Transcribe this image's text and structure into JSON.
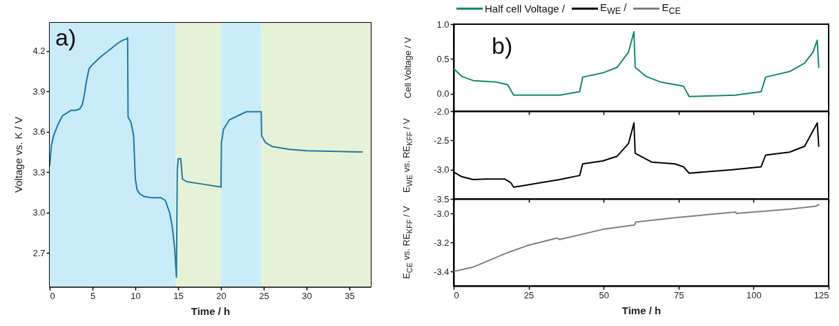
{
  "chart_data": [
    {
      "type": "line",
      "xlabel": "Time / h",
      "ylabel": "Voltage vs. K / V",
      "annotations": [
        "a)"
      ],
      "color": "#1f77a4",
      "x": [
        0,
        0.2,
        0.5,
        1,
        1.5,
        2,
        2.5,
        3,
        3.5,
        3.8,
        4,
        4.3,
        4.6,
        5,
        5.5,
        6,
        7,
        8,
        8.5,
        9,
        9.1,
        9.15,
        9.5,
        9.8,
        10,
        10.2,
        10.5,
        11,
        12,
        13,
        13.5,
        14,
        14.3,
        14.6,
        14.8,
        14.9,
        15,
        15.3,
        15.5,
        16,
        18,
        20,
        20.05,
        20.3,
        21,
        22,
        23,
        24.7,
        24.75,
        25.2,
        26,
        28,
        30,
        36.5
      ],
      "values": [
        3.35,
        3.5,
        3.58,
        3.66,
        3.72,
        3.74,
        3.76,
        3.76,
        3.77,
        3.8,
        3.86,
        3.98,
        4.07,
        4.1,
        4.13,
        4.16,
        4.21,
        4.26,
        4.28,
        4.29,
        4.3,
        3.71,
        3.67,
        3.57,
        3.25,
        3.17,
        3.14,
        3.12,
        3.11,
        3.11,
        3.09,
        3.0,
        2.9,
        2.73,
        2.52,
        3.31,
        3.4,
        3.4,
        3.25,
        3.23,
        3.21,
        3.19,
        3.52,
        3.62,
        3.69,
        3.72,
        3.75,
        3.75,
        3.57,
        3.52,
        3.49,
        3.47,
        3.46,
        3.45
      ],
      "bands": [
        {
          "axis": "x",
          "from": 0,
          "to": 14.7,
          "color": "#c9ecf8"
        },
        {
          "axis": "x",
          "from": 14.7,
          "to": 20,
          "color": "#e6f2d8"
        },
        {
          "axis": "x",
          "from": 20,
          "to": 24.7,
          "color": "#c9ecf8"
        },
        {
          "axis": "x",
          "from": 24.7,
          "to": 37.5,
          "color": "#e6f2d8"
        }
      ],
      "xlim": [
        0,
        37.5
      ],
      "xticks": [
        0,
        5,
        10,
        15,
        20,
        25,
        30,
        35
      ],
      "ylim": [
        2.45,
        4.41
      ],
      "yticks": [
        2.7,
        {
          "value": 3,
          "label": "3.0"
        },
        3.3,
        3.6,
        3.9,
        4.2
      ]
    },
    {
      "type": "line",
      "ylabel": "Cell Voltage / V",
      "annotations": [
        "b)"
      ],
      "legend": "top",
      "tick_labels": "y",
      "series": [
        {
          "name": "Half cell Voltage /",
          "color": "#138a66",
          "x": [
            0,
            2.7,
            6.5,
            14.2,
            18,
            20,
            35.3,
            42,
            43,
            49.7,
            54.5,
            58.3,
            60.1,
            60.5,
            64.1,
            68.9,
            76.6,
            78.5,
            93.9,
            102.5,
            104,
            112,
            117,
            119.8,
            121.2,
            121.7
          ],
          "values": [
            0.36,
            0.25,
            0.19,
            0.17,
            0.13,
            -0.02,
            -0.02,
            0.03,
            0.24,
            0.3,
            0.38,
            0.6,
            0.89,
            0.38,
            0.25,
            0.17,
            0.11,
            -0.04,
            -0.02,
            0.03,
            0.24,
            0.32,
            0.44,
            0.6,
            0.77,
            0.38
          ]
        }
      ],
      "xlim": [
        0,
        125
      ],
      "xticks": [
        0,
        25,
        50,
        75,
        100,
        125
      ],
      "ylim": [
        -0.25,
        1.0
      ],
      "yticks": [
        {
          "value": 0,
          "label": "0.0"
        },
        0.5,
        {
          "value": 1,
          "label": "1.0"
        }
      ]
    },
    {
      "type": "line",
      "ylabel": "E$_{WE}$ vs. RE$_{KFF}$ / V",
      "legend": "top",
      "tick_labels": "y",
      "series": [
        {
          "name": "E$_{WE}$ /",
          "color": "#000000",
          "x": [
            0,
            2.7,
            6.5,
            10.4,
            17,
            19,
            20,
            35.3,
            42,
            43,
            49.7,
            54.5,
            58.3,
            60.1,
            60.5,
            66,
            73.7,
            76.6,
            78.5,
            92.9,
            102.5,
            104,
            112,
            117,
            121.2,
            121.7
          ],
          "values": [
            -3.04,
            -3.12,
            -3.17,
            -3.16,
            -3.16,
            -3.22,
            -3.3,
            -3.17,
            -3.1,
            -2.9,
            -2.85,
            -2.77,
            -2.55,
            -2.2,
            -2.72,
            -2.87,
            -2.9,
            -2.95,
            -3.06,
            -3.0,
            -2.95,
            -2.75,
            -2.7,
            -2.6,
            -2.2,
            -2.6
          ]
        }
      ],
      "xlim": [
        0,
        125
      ],
      "xticks": [
        0,
        25,
        50,
        75,
        100,
        125
      ],
      "ylim": [
        -3.5,
        -2.0
      ],
      "yticks": [
        -3.5,
        {
          "value": -3,
          "label": "-3.0"
        },
        -2.5,
        {
          "value": -2,
          "label": "-2.0"
        }
      ]
    },
    {
      "type": "line",
      "xlabel": "Time / h",
      "ylabel": "E$_{CE}$ vs. RE$_{KFF}$ / V",
      "legend": "top",
      "series": [
        {
          "name": "E$_{CE}$",
          "color": "#7f7f7f",
          "x": [
            0,
            6.5,
            12.3,
            18,
            24.8,
            34.4,
            35.3,
            49.7,
            60.3,
            60.7,
            73.7,
            93.9,
            94.3,
            112.1,
            120.7,
            121.7
          ],
          "values": [
            -3.4,
            -3.37,
            -3.32,
            -3.27,
            -3.22,
            -3.17,
            -3.18,
            -3.11,
            -3.08,
            -3.06,
            -3.03,
            -2.99,
            -3.0,
            -2.97,
            -2.95,
            -2.94
          ]
        }
      ],
      "xlim": [
        0,
        125
      ],
      "xticks": [
        0,
        25,
        50,
        75,
        100,
        125
      ],
      "ylim": [
        -3.5,
        -2.9
      ],
      "yticks": [
        -3.4,
        -3.2,
        {
          "value": -3,
          "label": "-3.0"
        }
      ]
    }
  ]
}
